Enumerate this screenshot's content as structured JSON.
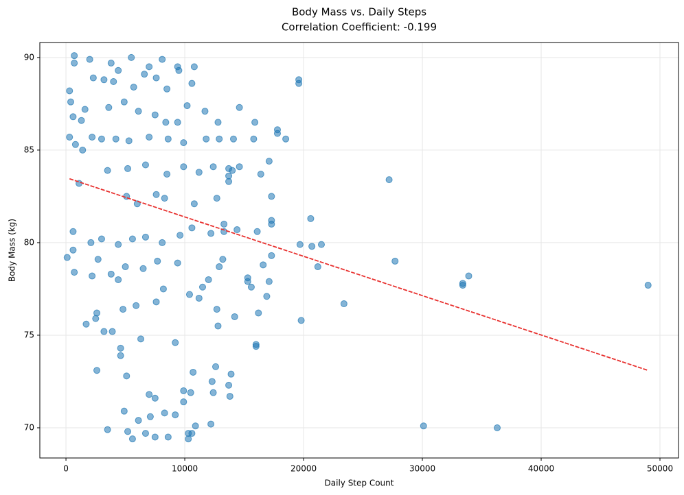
{
  "chart_data": {
    "type": "scatter",
    "title": "Body Mass vs. Daily Steps",
    "subtitle": "Correlation Coefficient: -0.199",
    "x_label": "Daily Step Count",
    "y_label": "Body Mass (kg)",
    "color": "#1f77b4",
    "grid": true,
    "xlim": [
      -2200,
      51560
    ],
    "ylim": [
      68.37,
      90.81
    ],
    "xticks": [
      0,
      10000,
      20000,
      30000,
      40000,
      50000
    ],
    "yticks": [
      70,
      75,
      80,
      85,
      90
    ],
    "x": [
      27200,
      27700,
      30100,
      36300,
      33400,
      33400,
      33900,
      49000,
      23400,
      19800,
      21200,
      20600,
      19700,
      20700,
      21500,
      19600,
      19600,
      17800,
      17800,
      18500,
      17300,
      17300,
      17300,
      17100,
      16400,
      16100,
      16000,
      16000,
      16200,
      16900,
      17100,
      16600,
      17300,
      15800,
      15900,
      14600,
      14600,
      14400,
      15300,
      15300,
      15600,
      14200,
      13800,
      13700,
      13900,
      13700,
      13700,
      13700,
      13300,
      13200,
      12900,
      12800,
      12700,
      12300,
      12400,
      12200,
      12600,
      10600,
      10300,
      10300,
      10900,
      9900,
      10500,
      10700,
      9900,
      8600,
      7500,
      6700,
      5600,
      5200,
      3500,
      6100,
      7100,
      8300,
      9200,
      4900,
      7000,
      7500,
      5100,
      2600,
      4600,
      4600,
      6300,
      9200,
      3200,
      3900,
      1700,
      2500,
      2600,
      4800,
      5900,
      7600,
      8200,
      10400,
      11200,
      11500,
      12000,
      4400,
      3800,
      2200,
      700,
      2700,
      5000,
      6500,
      7700,
      9400,
      100,
      600,
      2100,
      3000,
      4400,
      5600,
      6700,
      8100,
      9600,
      10600,
      12200,
      13300,
      600,
      5100,
      6000,
      7600,
      8300,
      10800,
      12700,
      1100,
      3500,
      5200,
      6700,
      8500,
      9900,
      11200,
      12400,
      14000,
      1400,
      300,
      800,
      2200,
      3000,
      4200,
      5300,
      7000,
      8600,
      9900,
      11800,
      12900,
      14100,
      600,
      1600,
      3600,
      4900,
      6100,
      7500,
      8400,
      9400,
      10200,
      11700,
      12800,
      300,
      400,
      1300,
      2300,
      3200,
      4000,
      5700,
      6600,
      7600,
      8500,
      9500,
      10600,
      10800,
      700,
      700,
      2000,
      3800,
      5500,
      7000,
      8100,
      9400,
      4400
    ],
    "values": [
      83.4,
      79.0,
      70.1,
      70.0,
      77.7,
      77.8,
      78.2,
      77.7,
      76.7,
      75.8,
      78.7,
      81.3,
      79.9,
      79.8,
      79.9,
      88.8,
      88.6,
      86.1,
      85.9,
      85.6,
      82.5,
      81.2,
      81.0,
      84.4,
      83.7,
      80.6,
      74.5,
      74.4,
      76.2,
      77.1,
      77.9,
      78.8,
      79.3,
      85.6,
      86.5,
      87.3,
      84.1,
      80.7,
      78.1,
      77.9,
      77.6,
      76.0,
      71.7,
      72.3,
      72.9,
      83.3,
      83.6,
      84.0,
      81.0,
      79.1,
      78.7,
      75.5,
      76.4,
      72.5,
      71.9,
      70.2,
      73.3,
      69.7,
      69.4,
      69.7,
      70.1,
      71.4,
      71.9,
      73.0,
      72.0,
      69.5,
      69.5,
      69.7,
      69.4,
      69.8,
      69.9,
      70.4,
      70.6,
      70.8,
      70.7,
      70.9,
      71.8,
      71.6,
      72.8,
      73.1,
      73.9,
      74.3,
      74.8,
      74.6,
      75.2,
      75.2,
      75.6,
      75.9,
      76.2,
      76.4,
      76.6,
      76.8,
      77.5,
      77.2,
      77.0,
      77.6,
      78.0,
      78.0,
      78.3,
      78.2,
      78.4,
      79.1,
      78.7,
      78.6,
      79.0,
      78.9,
      79.2,
      79.6,
      80.0,
      80.2,
      79.9,
      80.2,
      80.3,
      80.0,
      80.4,
      80.8,
      80.5,
      80.6,
      80.6,
      82.5,
      82.1,
      82.6,
      82.4,
      82.1,
      82.4,
      83.2,
      83.9,
      84.0,
      84.2,
      83.7,
      84.1,
      83.8,
      84.1,
      83.9,
      85.0,
      85.7,
      85.3,
      85.7,
      85.6,
      85.6,
      85.5,
      85.7,
      85.6,
      85.4,
      85.6,
      85.6,
      85.6,
      86.8,
      87.2,
      87.3,
      87.6,
      87.1,
      86.9,
      86.5,
      86.5,
      87.4,
      87.1,
      86.5,
      88.2,
      87.6,
      86.6,
      88.9,
      88.8,
      88.7,
      88.4,
      89.1,
      88.9,
      88.3,
      89.3,
      88.6,
      89.5,
      89.7,
      90.1,
      89.9,
      89.7,
      90.0,
      89.5,
      89.9,
      89.5,
      89.3
    ],
    "trend": {
      "color": "#e8312f",
      "x": [
        300,
        49000
      ],
      "values": [
        83.45,
        73.1
      ]
    }
  }
}
